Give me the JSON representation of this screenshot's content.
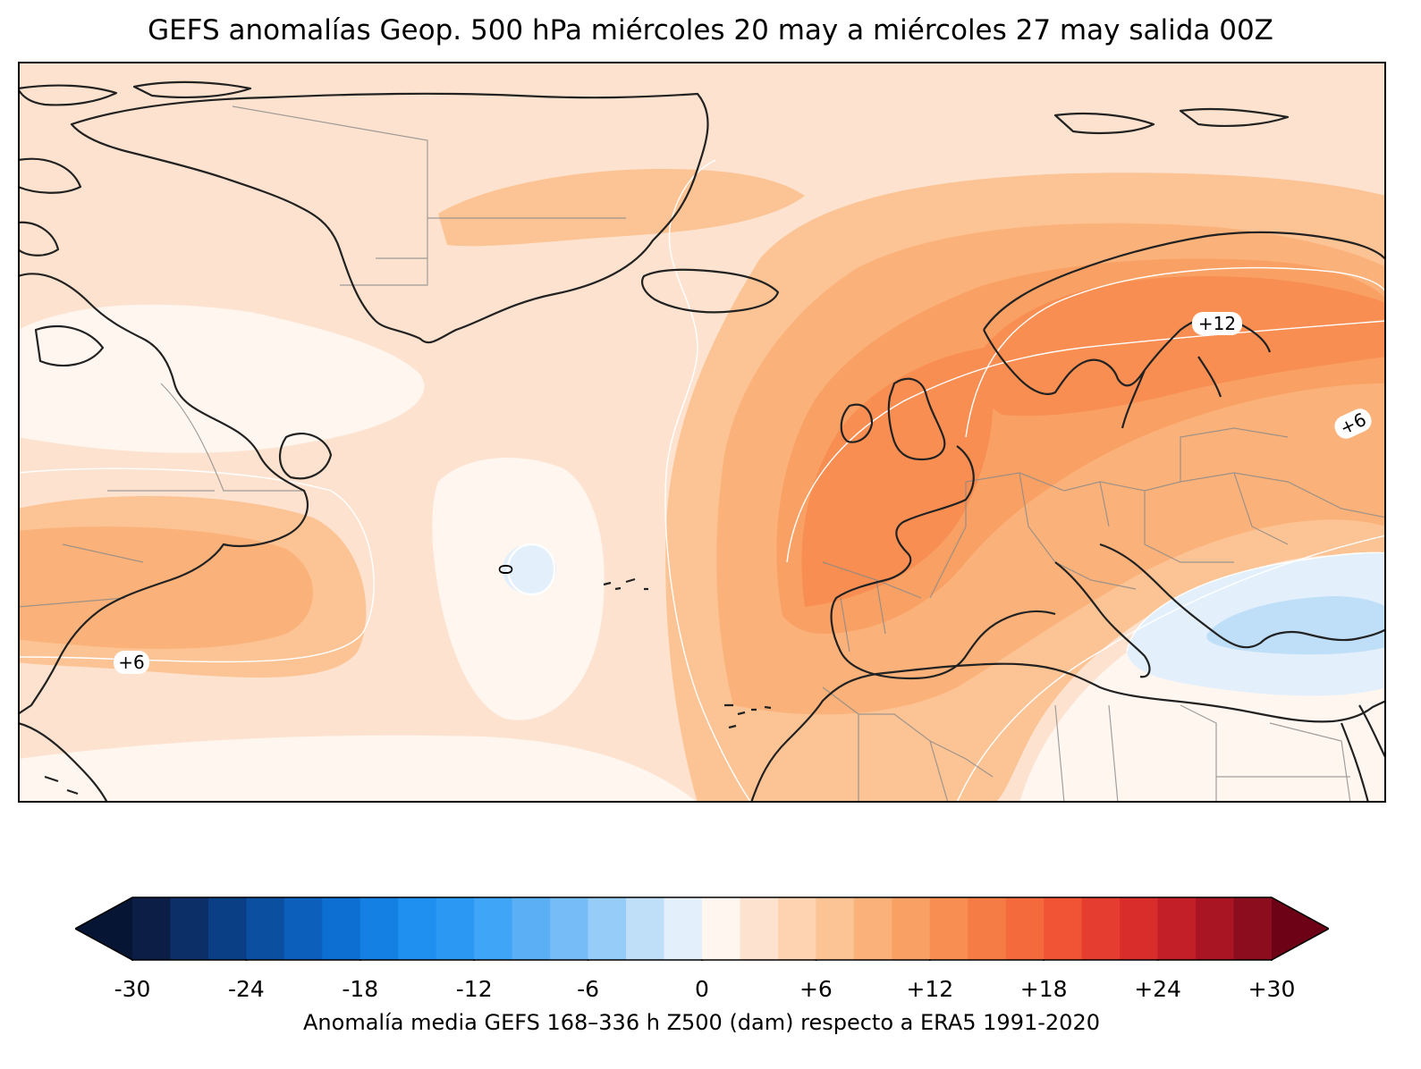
{
  "title": "GEFS anomalías Geop. 500 hPa miércoles 20 may a miércoles 27 may salida 00Z",
  "map": {
    "region": "North Atlantic and Europe",
    "contour_labels": [
      "+12",
      "+6",
      "+6",
      "0"
    ],
    "colors": {
      "coastline": "#222222",
      "borders": "#777777",
      "contour_line": "#ffffff",
      "frame": "#000000"
    }
  },
  "colorbar": {
    "label": "Anomalía media GEFS 168–336 h Z500 (dam) respecto a ERA5 1991-2020",
    "ticks": [
      "-30",
      "-24",
      "-18",
      "-12",
      "-6",
      "0",
      "+6",
      "+12",
      "+18",
      "+24",
      "+30"
    ],
    "tick_values": [
      -30,
      -24,
      -18,
      -12,
      -6,
      0,
      6,
      12,
      18,
      24,
      30
    ],
    "bounds": [
      -30,
      30
    ],
    "step": 2,
    "extend": "both",
    "colors": [
      "#0c1e45",
      "#0b2f66",
      "#0a3f86",
      "#0b4fa0",
      "#0c5fbb",
      "#0d6fd2",
      "#1580e3",
      "#1f8ff0",
      "#2b99f4",
      "#3fa5f7",
      "#5aaff5",
      "#76bcf6",
      "#95ccf8",
      "#bfdef8",
      "#e3f0fc",
      "#fff6ef",
      "#fde3cf",
      "#fdd3b1",
      "#fcc394",
      "#fbb27a",
      "#f9a165",
      "#f88e52",
      "#f67c45",
      "#f56a3c",
      "#f05434",
      "#e53d2f",
      "#d82d2b",
      "#c21f28",
      "#a91523",
      "#8b0d1e"
    ],
    "under_color": "#051533",
    "over_color": "#6d0216"
  }
}
